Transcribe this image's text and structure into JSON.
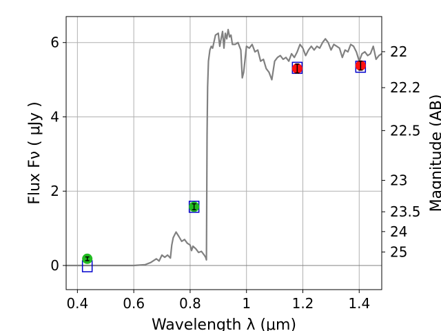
{
  "chart_data": {
    "type": "line",
    "xlabel": "Wavelength  λ (μm)",
    "ylabel": "Flux  Fν  ( μJy )",
    "ylabel_right": "Magnitude (AB)",
    "xlim": [
      0.36,
      1.48
    ],
    "ylim": [
      -0.65,
      6.7
    ],
    "grid": true,
    "x_ticks": [
      0.4,
      0.6,
      0.8,
      1.0,
      1.2,
      1.4
    ],
    "x_tick_labels": [
      "0.4",
      "0.6",
      "0.8",
      "1",
      "1.2",
      "1.4"
    ],
    "y_ticks": [
      0,
      2,
      4,
      6
    ],
    "y_tick_labels": [
      "0",
      "2",
      "4",
      "6"
    ],
    "right_ticks": [
      22,
      22.2,
      22.5,
      23,
      23.5,
      24,
      25
    ],
    "right_tick_labels": [
      "22",
      "22.2",
      "22.5",
      "23",
      "23.5",
      "24",
      "25"
    ],
    "colors": {
      "sed": "#808080",
      "model_box": "#0000cc",
      "green_point": "#22bb22",
      "red_point": "#ff1111",
      "zero_line": "#808080"
    },
    "series": [
      {
        "kind": "sed-model",
        "x": [
          0.36,
          0.4,
          0.5,
          0.6,
          0.64,
          0.66,
          0.68,
          0.69,
          0.7,
          0.71,
          0.72,
          0.73,
          0.735,
          0.74,
          0.75,
          0.76,
          0.77,
          0.78,
          0.79,
          0.8,
          0.805,
          0.81,
          0.82,
          0.83,
          0.84,
          0.85,
          0.855,
          0.858,
          0.86,
          0.862,
          0.865,
          0.87,
          0.875,
          0.88,
          0.89,
          0.9,
          0.905,
          0.91,
          0.915,
          0.92,
          0.925,
          0.93,
          0.935,
          0.94,
          0.945,
          0.95,
          0.96,
          0.97,
          0.98,
          0.985,
          0.99,
          1.0,
          1.01,
          1.02,
          1.03,
          1.04,
          1.05,
          1.06,
          1.07,
          1.08,
          1.09,
          1.1,
          1.11,
          1.12,
          1.13,
          1.14,
          1.15,
          1.16,
          1.17,
          1.18,
          1.19,
          1.2,
          1.21,
          1.22,
          1.23,
          1.24,
          1.25,
          1.26,
          1.27,
          1.28,
          1.29,
          1.3,
          1.31,
          1.32,
          1.33,
          1.34,
          1.35,
          1.36,
          1.37,
          1.38,
          1.39,
          1.4,
          1.41,
          1.42,
          1.43,
          1.44,
          1.45,
          1.46,
          1.47,
          1.48
        ],
        "y": [
          0.0,
          0.0,
          0.0,
          0.0,
          0.02,
          0.08,
          0.18,
          0.12,
          0.28,
          0.22,
          0.28,
          0.2,
          0.55,
          0.75,
          0.9,
          0.78,
          0.65,
          0.7,
          0.6,
          0.55,
          0.4,
          0.52,
          0.45,
          0.35,
          0.38,
          0.28,
          0.22,
          0.15,
          3.5,
          4.8,
          5.5,
          5.8,
          5.9,
          5.85,
          6.2,
          6.25,
          5.9,
          6.1,
          6.3,
          5.85,
          6.25,
          6.1,
          6.35,
          6.15,
          6.2,
          5.95,
          5.95,
          6.0,
          5.8,
          5.05,
          5.2,
          5.9,
          5.85,
          5.95,
          5.75,
          5.8,
          5.5,
          5.55,
          5.3,
          5.2,
          5.0,
          5.5,
          5.6,
          5.65,
          5.55,
          5.6,
          5.5,
          5.7,
          5.6,
          5.75,
          5.95,
          5.85,
          5.65,
          5.8,
          5.9,
          5.8,
          5.9,
          5.85,
          6.0,
          6.1,
          6.0,
          5.8,
          5.95,
          5.9,
          5.85,
          5.6,
          5.8,
          5.75,
          5.95,
          5.9,
          5.75,
          5.5,
          5.7,
          5.75,
          5.65,
          5.7,
          5.9,
          5.55,
          5.65,
          5.7
        ]
      },
      {
        "kind": "model-photometry",
        "x": [
          0.435,
          0.814,
          1.18,
          1.405
        ],
        "y": [
          -0.02,
          1.58,
          5.32,
          5.35
        ]
      },
      {
        "kind": "observed-green",
        "x": [
          0.435,
          0.814
        ],
        "y": [
          0.18,
          1.58
        ],
        "yerr": [
          0.05,
          0.08
        ]
      },
      {
        "kind": "observed-red",
        "x": [
          1.18,
          1.405
        ],
        "y": [
          5.3,
          5.38
        ],
        "yerr": [
          0.12,
          0.12
        ]
      }
    ]
  }
}
